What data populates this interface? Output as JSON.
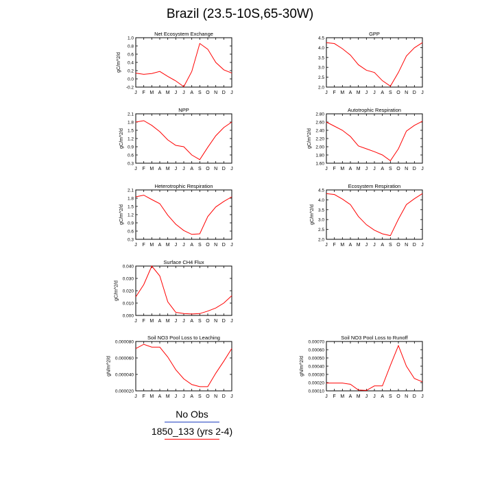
{
  "title": "Brazil (23.5-10S,65-30W)",
  "months": [
    "J",
    "F",
    "M",
    "A",
    "M",
    "J",
    "J",
    "A",
    "S",
    "O",
    "N",
    "D",
    "J"
  ],
  "colors": {
    "model": "#ff0000",
    "obs": "#1f3fbf",
    "axis": "#000000"
  },
  "legend": [
    {
      "label": "No Obs",
      "color": "#1f3fbf"
    },
    {
      "label": "1850_133 (yrs 2-4)",
      "color": "#ff0000"
    }
  ],
  "chart_data": [
    {
      "type": "line",
      "title": "Net Ecosystem Exchange",
      "xlabel": "",
      "ylabel": "gC/m^2/d",
      "ylim": [
        -0.2,
        1.0
      ],
      "yticks": [
        "-0.2",
        "0.0",
        "0.2",
        "0.4",
        "0.6",
        "0.8",
        "1.0"
      ],
      "series": [
        {
          "values": [
            0.14,
            0.11,
            0.13,
            0.18,
            0.06,
            -0.05,
            -0.19,
            0.18,
            0.86,
            0.72,
            0.4,
            0.22,
            0.14
          ]
        }
      ]
    },
    {
      "type": "line",
      "title": "GPP",
      "xlabel": "",
      "ylabel": "",
      "ylim": [
        2.0,
        4.7
      ],
      "yticks": [
        "2.0",
        "2.5",
        "3.0",
        "3.5",
        "4.0",
        "4.5"
      ],
      "series": [
        {
          "values": [
            4.43,
            4.38,
            4.1,
            3.75,
            3.22,
            2.92,
            2.8,
            2.35,
            2.05,
            2.8,
            3.7,
            4.15,
            4.43
          ]
        }
      ]
    },
    {
      "type": "line",
      "title": "NPP",
      "xlabel": "",
      "ylabel": "gC/m^2/d",
      "ylim": [
        0.3,
        2.1
      ],
      "yticks": [
        "0.3",
        "0.6",
        "0.9",
        "1.2",
        "1.5",
        "1.8",
        "2.1"
      ],
      "series": [
        {
          "values": [
            1.8,
            1.85,
            1.68,
            1.45,
            1.15,
            0.95,
            0.9,
            0.6,
            0.43,
            0.88,
            1.3,
            1.6,
            1.8
          ]
        }
      ]
    },
    {
      "type": "line",
      "title": "Autotrophic Respiration",
      "xlabel": "",
      "ylabel": "gC/m^2/d",
      "ylim": [
        1.6,
        2.8
      ],
      "yticks": [
        "1.60",
        "1.80",
        "2.00",
        "2.20",
        "2.40",
        "2.60",
        "2.80"
      ],
      "series": [
        {
          "values": [
            2.6,
            2.5,
            2.4,
            2.25,
            2.02,
            1.95,
            1.88,
            1.8,
            1.66,
            1.95,
            2.38,
            2.52,
            2.62
          ]
        }
      ]
    },
    {
      "type": "line",
      "title": "Heterotrophic Respiration",
      "xlabel": "",
      "ylabel": "gC/m^2/d",
      "ylim": [
        0.3,
        2.1
      ],
      "yticks": [
        "0.3",
        "0.6",
        "0.9",
        "1.2",
        "1.5",
        "1.8",
        "2.1"
      ],
      "series": [
        {
          "values": [
            1.85,
            1.91,
            1.75,
            1.6,
            1.18,
            0.85,
            0.62,
            0.48,
            0.5,
            1.13,
            1.48,
            1.68,
            1.85
          ]
        }
      ]
    },
    {
      "type": "line",
      "title": "Ecosystem Respiration",
      "xlabel": "",
      "ylabel": "gC/m^2/d",
      "ylim": [
        2.0,
        4.7
      ],
      "yticks": [
        "2.0",
        "2.5",
        "3.0",
        "3.5",
        "4.0",
        "4.5"
      ],
      "series": [
        {
          "values": [
            4.5,
            4.45,
            4.2,
            3.9,
            3.25,
            2.8,
            2.5,
            2.3,
            2.2,
            3.1,
            3.9,
            4.22,
            4.5
          ]
        }
      ]
    },
    {
      "type": "line",
      "title": "Surface CH4 Flux",
      "xlabel": "",
      "ylabel": "gC/m^2/d",
      "ylim": [
        0.0,
        0.04
      ],
      "yticks": [
        "0.000",
        "0.010",
        "0.020",
        "0.030",
        "0.040"
      ],
      "series": [
        {
          "values": [
            0.015,
            0.025,
            0.04,
            0.032,
            0.011,
            0.0025,
            0.0015,
            0.0012,
            0.0015,
            0.0035,
            0.006,
            0.01,
            0.016
          ]
        }
      ]
    },
    {
      "type": "line",
      "title": "Soil NO3 Pool Loss to Leaching",
      "xlabel": "",
      "ylabel": "gN/m^2/d",
      "ylim": [
        1e-05,
        8e-05
      ],
      "yticks": [
        "0.000020",
        "0.000040",
        "0.000060",
        "0.000080"
      ],
      "series": [
        {
          "values": [
            7e-05,
            7.6e-05,
            7.2e-05,
            7.2e-05,
            5.8e-05,
            4e-05,
            2.7e-05,
            1.9e-05,
            1.6e-05,
            1.6e-05,
            3.5e-05,
            5.2e-05,
            7e-05
          ]
        }
      ]
    },
    {
      "type": "line",
      "title": "Soil NO3 Pool Loss to Runoff",
      "xlabel": "",
      "ylabel": "gN/m^2/d",
      "ylim": [
        0.0001,
        0.0007
      ],
      "yticks": [
        "0.00010",
        "0.00020",
        "0.00030",
        "0.00040",
        "0.00050",
        "0.00060",
        "0.00070"
      ],
      "series": [
        {
          "values": [
            0.000195,
            0.000195,
            0.000195,
            0.00018,
            0.00011,
            0.000105,
            0.00016,
            0.00016,
            0.00041,
            0.00065,
            0.0004,
            0.00025,
            0.00021
          ]
        }
      ]
    }
  ]
}
